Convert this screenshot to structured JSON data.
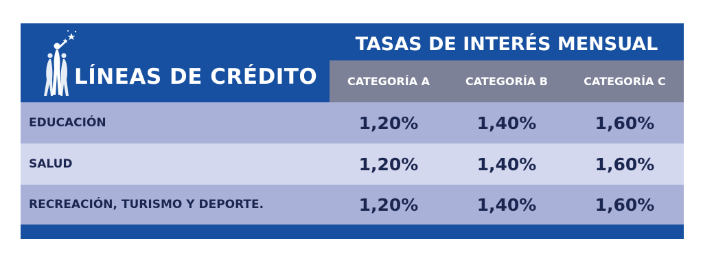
{
  "header": {
    "lines_title": "LÍNEAS DE CRÉDITO",
    "rates_title": "TASAS DE INTERÉS MENSUAL",
    "categories": [
      "CATEGORÍA A",
      "CATEGORÍA B",
      "CATEGORÍA C"
    ],
    "logo_icon": "figures-with-stars-logo"
  },
  "rows": [
    {
      "label": "EDUCACIÓN",
      "values": [
        "1,20%",
        "1,40%",
        "1,60%"
      ]
    },
    {
      "label": "SALUD",
      "values": [
        "1,20%",
        "1,40%",
        "1,60%"
      ]
    },
    {
      "label": "RECREACIÓN, TURISMO Y DEPORTE.",
      "values": [
        "1,20%",
        "1,40%",
        "1,60%"
      ]
    }
  ],
  "colors": {
    "header_blue": "#1750a0",
    "category_gray": "#7d8197",
    "row_dark": "#a9b1d8",
    "row_light": "#d4d8ee",
    "text_dark": "#1b2650"
  }
}
